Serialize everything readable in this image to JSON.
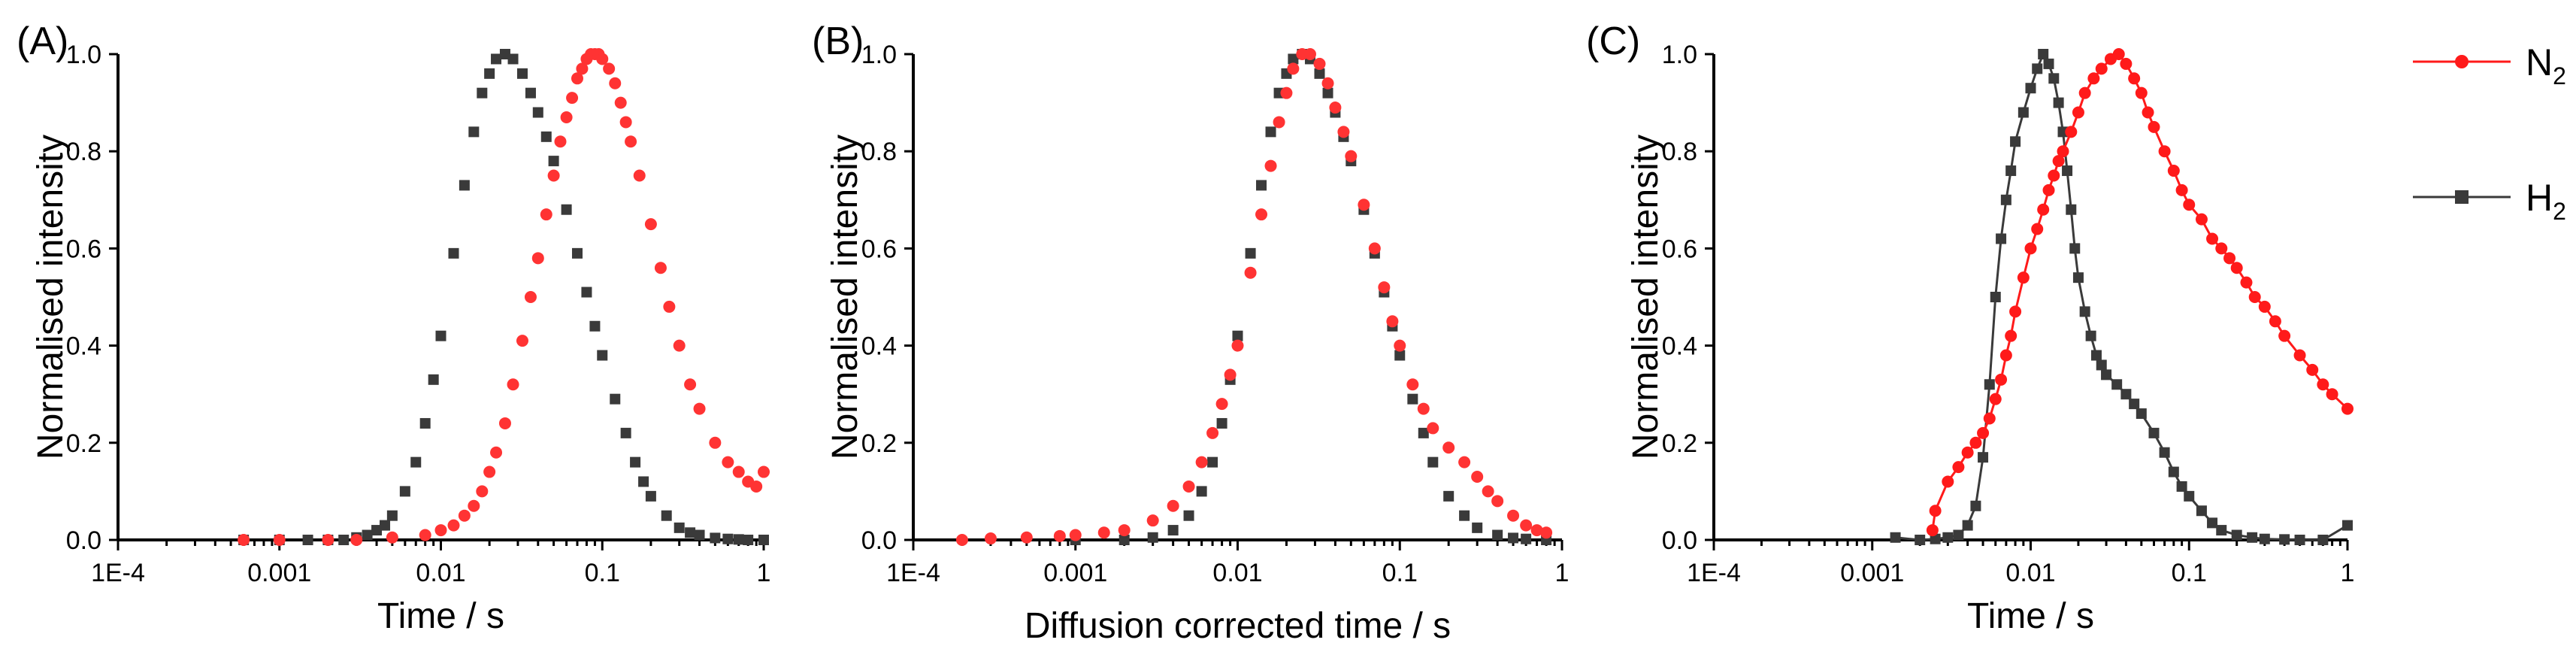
{
  "legend": {
    "entries": [
      {
        "base": "N",
        "sub": "2",
        "color": "#ff1a1a",
        "marker": "circle"
      },
      {
        "base": "H",
        "sub": "2",
        "color": "#3a3a3a",
        "marker": "square"
      }
    ]
  },
  "chart_data": [
    {
      "type": "scatter",
      "panel_label": "(A)",
      "title": "",
      "xlabel": "Time / s",
      "ylabel": "Normalised intensity",
      "xscale": "log",
      "xlim": [
        0.0001,
        1
      ],
      "ylim": [
        0,
        1
      ],
      "x_tick_values": [
        0.0001,
        0.001,
        0.01,
        0.1,
        1
      ],
      "x_tick_labels": [
        "1E-4",
        "0.001",
        "0.01",
        "0.1",
        "1"
      ],
      "y_tick_values": [
        0,
        0.2,
        0.4,
        0.6,
        0.8,
        1.0
      ],
      "y_tick_labels": [
        "0.0",
        "0.2",
        "0.4",
        "0.6",
        "0.8",
        "1.0"
      ],
      "series": [
        {
          "name": "H2",
          "color": "#3a3a3a",
          "marker": "square",
          "line": false,
          "x": [
            0.0006,
            0.001,
            0.0015,
            0.002,
            0.0025,
            0.003,
            0.0035,
            0.004,
            0.0045,
            0.005,
            0.006,
            0.007,
            0.008,
            0.009,
            0.01,
            0.012,
            0.014,
            0.016,
            0.018,
            0.02,
            0.022,
            0.025,
            0.028,
            0.032,
            0.036,
            0.04,
            0.045,
            0.05,
            0.06,
            0.07,
            0.08,
            0.09,
            0.1,
            0.12,
            0.14,
            0.16,
            0.18,
            0.2,
            0.25,
            0.3,
            0.35,
            0.4,
            0.5,
            0.6,
            0.7,
            0.8,
            1.0
          ],
          "y": [
            0,
            0,
            0,
            0,
            0,
            0.005,
            0.01,
            0.02,
            0.03,
            0.05,
            0.1,
            0.16,
            0.24,
            0.33,
            0.42,
            0.59,
            0.73,
            0.84,
            0.92,
            0.96,
            0.99,
            1.0,
            0.99,
            0.96,
            0.92,
            0.88,
            0.83,
            0.78,
            0.68,
            0.59,
            0.51,
            0.44,
            0.38,
            0.29,
            0.22,
            0.16,
            0.12,
            0.09,
            0.05,
            0.025,
            0.015,
            0.01,
            0.004,
            0.002,
            0.001,
            0,
            0
          ]
        },
        {
          "name": "N2",
          "color": "#ff3333",
          "marker": "circle",
          "line": false,
          "x": [
            0.0006,
            0.001,
            0.002,
            0.003,
            0.005,
            0.008,
            0.01,
            0.012,
            0.014,
            0.016,
            0.018,
            0.02,
            0.022,
            0.025,
            0.028,
            0.032,
            0.036,
            0.04,
            0.045,
            0.05,
            0.055,
            0.06,
            0.065,
            0.07,
            0.075,
            0.08,
            0.085,
            0.09,
            0.095,
            0.1,
            0.11,
            0.12,
            0.13,
            0.14,
            0.15,
            0.17,
            0.2,
            0.23,
            0.26,
            0.3,
            0.35,
            0.4,
            0.5,
            0.6,
            0.7,
            0.8,
            0.9,
            1.0
          ],
          "y": [
            0,
            0,
            0,
            0,
            0.005,
            0.01,
            0.02,
            0.03,
            0.05,
            0.07,
            0.1,
            0.14,
            0.18,
            0.24,
            0.32,
            0.41,
            0.5,
            0.58,
            0.67,
            0.75,
            0.82,
            0.87,
            0.91,
            0.95,
            0.97,
            0.99,
            1.0,
            1.0,
            1.0,
            0.99,
            0.97,
            0.94,
            0.9,
            0.86,
            0.82,
            0.75,
            0.65,
            0.56,
            0.48,
            0.4,
            0.32,
            0.27,
            0.2,
            0.16,
            0.14,
            0.12,
            0.11,
            0.14
          ]
        }
      ]
    },
    {
      "type": "scatter",
      "panel_label": "(B)",
      "title": "",
      "xlabel": "Diffusion corrected time / s",
      "ylabel": "Normalised intensity",
      "xscale": "log",
      "xlim": [
        0.0001,
        1
      ],
      "ylim": [
        0,
        1
      ],
      "x_tick_values": [
        0.0001,
        0.001,
        0.01,
        0.1,
        1
      ],
      "x_tick_labels": [
        "1E-4",
        "0.001",
        "0.01",
        "0.1",
        "1"
      ],
      "y_tick_values": [
        0,
        0.2,
        0.4,
        0.6,
        0.8,
        1.0
      ],
      "y_tick_labels": [
        "0.0",
        "0.2",
        "0.4",
        "0.6",
        "0.8",
        "1.0"
      ],
      "series": [
        {
          "name": "H2",
          "color": "#3a3a3a",
          "marker": "square",
          "line": false,
          "x": [
            0.001,
            0.002,
            0.003,
            0.004,
            0.005,
            0.006,
            0.007,
            0.008,
            0.009,
            0.01,
            0.012,
            0.014,
            0.016,
            0.018,
            0.02,
            0.022,
            0.025,
            0.028,
            0.032,
            0.036,
            0.04,
            0.045,
            0.05,
            0.06,
            0.07,
            0.08,
            0.09,
            0.1,
            0.12,
            0.14,
            0.16,
            0.2,
            0.25,
            0.3,
            0.4,
            0.5,
            0.6,
            0.8
          ],
          "y": [
            0,
            0,
            0.005,
            0.02,
            0.05,
            0.1,
            0.16,
            0.24,
            0.33,
            0.42,
            0.59,
            0.73,
            0.84,
            0.92,
            0.96,
            0.99,
            1.0,
            0.99,
            0.96,
            0.92,
            0.88,
            0.83,
            0.78,
            0.68,
            0.59,
            0.51,
            0.44,
            0.38,
            0.29,
            0.22,
            0.16,
            0.09,
            0.05,
            0.025,
            0.01,
            0.004,
            0.002,
            0
          ]
        },
        {
          "name": "N2",
          "color": "#ff3333",
          "marker": "circle",
          "line": false,
          "x": [
            0.0002,
            0.0003,
            0.0005,
            0.0008,
            0.001,
            0.0015,
            0.002,
            0.003,
            0.004,
            0.005,
            0.006,
            0.007,
            0.008,
            0.009,
            0.01,
            0.012,
            0.014,
            0.016,
            0.018,
            0.02,
            0.022,
            0.025,
            0.028,
            0.032,
            0.036,
            0.04,
            0.045,
            0.05,
            0.06,
            0.07,
            0.08,
            0.09,
            0.1,
            0.12,
            0.14,
            0.16,
            0.2,
            0.25,
            0.3,
            0.35,
            0.4,
            0.5,
            0.6,
            0.7,
            0.8
          ],
          "y": [
            0,
            0.003,
            0.005,
            0.008,
            0.01,
            0.015,
            0.02,
            0.04,
            0.07,
            0.11,
            0.16,
            0.22,
            0.28,
            0.34,
            0.4,
            0.55,
            0.67,
            0.77,
            0.86,
            0.92,
            0.97,
            1.0,
            1.0,
            0.98,
            0.94,
            0.89,
            0.84,
            0.79,
            0.69,
            0.6,
            0.52,
            0.45,
            0.4,
            0.32,
            0.27,
            0.23,
            0.19,
            0.16,
            0.13,
            0.1,
            0.08,
            0.05,
            0.03,
            0.02,
            0.015
          ]
        }
      ]
    },
    {
      "type": "line",
      "panel_label": "(C)",
      "title": "",
      "xlabel": "Time / s",
      "ylabel": "Normalised intensity",
      "xscale": "log",
      "xlim": [
        0.0001,
        1
      ],
      "ylim": [
        0,
        1
      ],
      "x_tick_values": [
        0.0001,
        0.001,
        0.01,
        0.1,
        1
      ],
      "x_tick_labels": [
        "1E-4",
        "0.001",
        "0.01",
        "0.1",
        "1"
      ],
      "y_tick_values": [
        0,
        0.2,
        0.4,
        0.6,
        0.8,
        1.0
      ],
      "y_tick_labels": [
        "0.0",
        "0.2",
        "0.4",
        "0.6",
        "0.8",
        "1.0"
      ],
      "series": [
        {
          "name": "H2",
          "color": "#3a3a3a",
          "marker": "square",
          "line": true,
          "x": [
            0.0014,
            0.002,
            0.0025,
            0.003,
            0.0035,
            0.004,
            0.0045,
            0.005,
            0.0055,
            0.006,
            0.0065,
            0.007,
            0.0075,
            0.008,
            0.009,
            0.01,
            0.011,
            0.012,
            0.013,
            0.014,
            0.015,
            0.016,
            0.017,
            0.018,
            0.019,
            0.02,
            0.022,
            0.024,
            0.026,
            0.028,
            0.03,
            0.035,
            0.04,
            0.045,
            0.05,
            0.06,
            0.07,
            0.08,
            0.09,
            0.1,
            0.12,
            0.14,
            0.16,
            0.2,
            0.25,
            0.3,
            0.4,
            0.5,
            0.7,
            1.0
          ],
          "y": [
            0.005,
            0,
            0.002,
            0.005,
            0.01,
            0.03,
            0.07,
            0.17,
            0.32,
            0.5,
            0.62,
            0.7,
            0.76,
            0.82,
            0.88,
            0.93,
            0.97,
            1.0,
            0.98,
            0.95,
            0.9,
            0.84,
            0.76,
            0.68,
            0.6,
            0.54,
            0.47,
            0.42,
            0.38,
            0.36,
            0.34,
            0.32,
            0.3,
            0.28,
            0.26,
            0.22,
            0.18,
            0.14,
            0.11,
            0.09,
            0.06,
            0.035,
            0.02,
            0.01,
            0.005,
            0.002,
            0.001,
            0,
            0,
            0.03
          ]
        },
        {
          "name": "N2",
          "color": "#ff1a1a",
          "marker": "circle",
          "line": true,
          "x": [
            0.0024,
            0.0025,
            0.003,
            0.0035,
            0.004,
            0.0045,
            0.005,
            0.0055,
            0.006,
            0.0065,
            0.007,
            0.0075,
            0.008,
            0.009,
            0.01,
            0.011,
            0.012,
            0.013,
            0.014,
            0.015,
            0.016,
            0.018,
            0.02,
            0.022,
            0.025,
            0.028,
            0.032,
            0.036,
            0.04,
            0.045,
            0.05,
            0.055,
            0.06,
            0.07,
            0.08,
            0.09,
            0.1,
            0.12,
            0.14,
            0.16,
            0.18,
            0.2,
            0.23,
            0.26,
            0.3,
            0.35,
            0.4,
            0.5,
            0.6,
            0.7,
            0.8,
            1.0
          ],
          "y": [
            0.02,
            0.06,
            0.12,
            0.15,
            0.18,
            0.2,
            0.22,
            0.25,
            0.29,
            0.33,
            0.38,
            0.42,
            0.47,
            0.54,
            0.6,
            0.64,
            0.68,
            0.72,
            0.75,
            0.78,
            0.8,
            0.84,
            0.88,
            0.92,
            0.95,
            0.97,
            0.99,
            1.0,
            0.98,
            0.95,
            0.92,
            0.88,
            0.85,
            0.8,
            0.76,
            0.72,
            0.69,
            0.66,
            0.62,
            0.6,
            0.58,
            0.56,
            0.53,
            0.5,
            0.48,
            0.45,
            0.42,
            0.38,
            0.35,
            0.32,
            0.3,
            0.27
          ]
        }
      ]
    }
  ]
}
